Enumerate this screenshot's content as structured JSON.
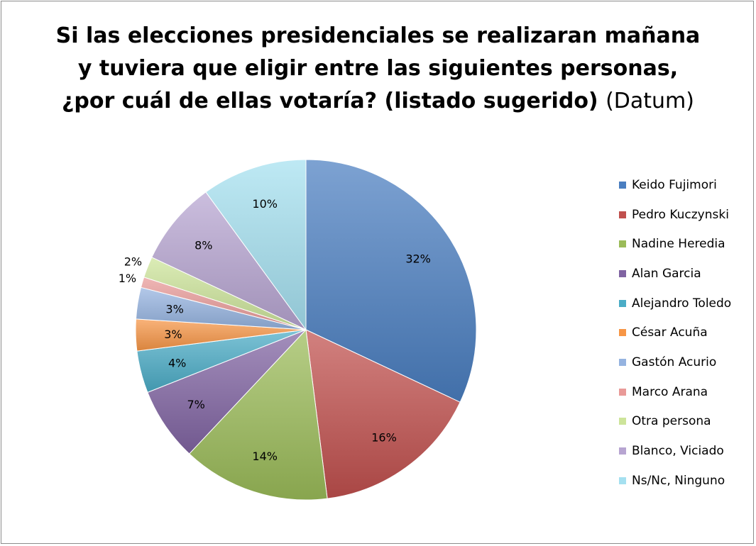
{
  "title": {
    "main_line1": "Si las elecciones presidenciales se realizaran mañana",
    "main_line2": "y tuviera que eligir entre las siguientes personas,",
    "main_line3": "¿por cuál de ellas votaría? (listado sugerido)",
    "source": "(Datum)"
  },
  "chart_data": {
    "type": "pie",
    "title": "Si las elecciones presidenciales se realizaran mañana y tuviera que eligir entre las siguientes personas, ¿por cuál de ellas votaría? (listado sugerido) (Datum)",
    "legend_position": "right",
    "slices": [
      {
        "label": "Keido Fujimori",
        "value": 32,
        "display": "32%",
        "color": "#4a7ec0"
      },
      {
        "label": "Pedro Kuczynski",
        "value": 16,
        "display": "16%",
        "color": "#c0504d"
      },
      {
        "label": "Nadine Heredia",
        "value": 14,
        "display": "14%",
        "color": "#9bbb59"
      },
      {
        "label": "Alan Garcia",
        "value": 7,
        "display": "7%",
        "color": "#8064a2"
      },
      {
        "label": "Alejandro Toledo",
        "value": 4,
        "display": "4%",
        "color": "#4bacc6"
      },
      {
        "label": "César Acuña",
        "value": 3,
        "display": "3%",
        "color": "#f79646"
      },
      {
        "label": "Gastón Acurio",
        "value": 3,
        "display": "3%",
        "color": "#95b3e0"
      },
      {
        "label": "Marco Arana",
        "value": 1,
        "display": "1%",
        "color": "#e99a98"
      },
      {
        "label": "Otra persona",
        "value": 2,
        "display": "2%",
        "color": "#cde49a"
      },
      {
        "label": "Blanco, Viciado",
        "value": 8,
        "display": "8%",
        "color": "#b7a5d1"
      },
      {
        "label": "Ns/Nc, Ninguno",
        "value": 10,
        "display": "10%",
        "color": "#a5e0f0"
      }
    ]
  }
}
